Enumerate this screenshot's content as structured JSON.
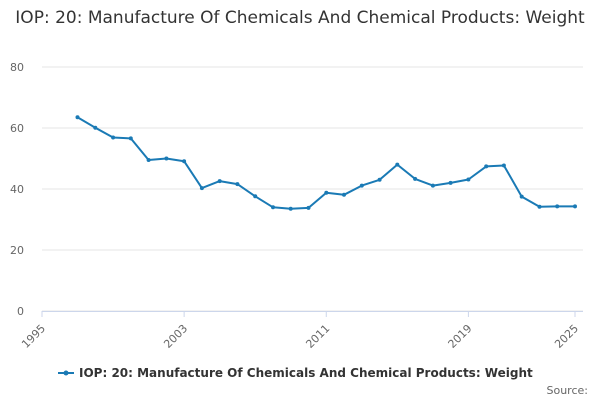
{
  "chart_data": {
    "type": "line",
    "title": "IOP: 20: Manufacture Of Chemicals And Chemical Products: Weight",
    "xlabel": "",
    "ylabel": "",
    "xlim": [
      1995,
      2025
    ],
    "ylim": [
      0,
      80
    ],
    "x_ticks": [
      "1995",
      "2003",
      "2011",
      "2019",
      "2025"
    ],
    "y_ticks": [
      "0",
      "20",
      "40",
      "60",
      "80"
    ],
    "grid": true,
    "legend_position": "bottom",
    "colors": {
      "series": "#1a7ab5",
      "grid": "#e6e6e6",
      "axis": "#ccd6eb"
    },
    "x": [
      1997,
      1998,
      1999,
      2000,
      2001,
      2002,
      2003,
      2004,
      2005,
      2006,
      2007,
      2008,
      2009,
      2010,
      2011,
      2012,
      2013,
      2014,
      2015,
      2016,
      2017,
      2018,
      2019,
      2020,
      2021,
      2022,
      2023,
      2024,
      2025
    ],
    "series": [
      {
        "name": "IOP: 20: Manufacture Of Chemicals And Chemical Products: Weight",
        "values": [
          63.5,
          60.1,
          56.9,
          56.6,
          49.5,
          50.0,
          49.1,
          40.3,
          42.6,
          41.6,
          37.6,
          34.0,
          33.5,
          33.8,
          38.8,
          38.1,
          41.1,
          43.0,
          48.0,
          43.3,
          41.1,
          42.0,
          43.1,
          47.4,
          47.7,
          37.5,
          34.2,
          34.3,
          34.3
        ]
      }
    ],
    "source": "Source:"
  }
}
